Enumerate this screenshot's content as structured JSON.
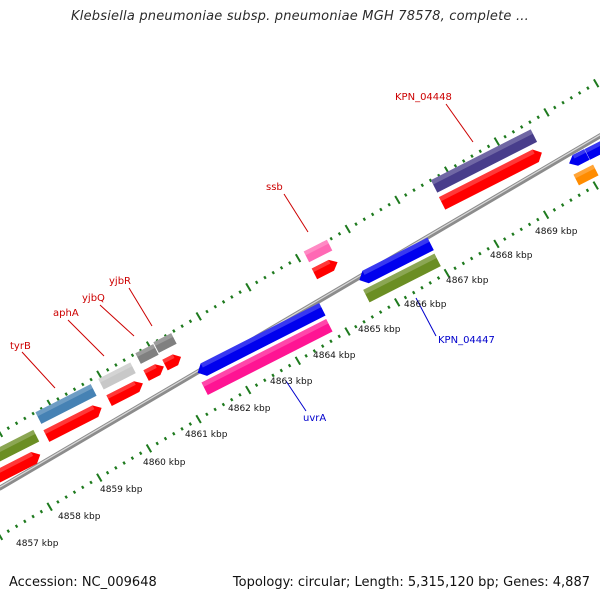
{
  "title": "Klebsiella pneumoniae subsp. pneumoniae MGH 78578, complete ...",
  "footer": {
    "accession": "Accession: NC_009648",
    "stats": "Topology: circular; Length: 5,315,120 bp; Genes: 4,887"
  },
  "scale": {
    "unit": "kbp",
    "labels": [
      "4857 kbp",
      "4858 kbp",
      "4859 kbp",
      "4860 kbp",
      "4861 kbp",
      "4862 kbp",
      "4863 kbp",
      "4864 kbp",
      "4865 kbp",
      "4866 kbp",
      "4867 kbp",
      "4868 kbp",
      "4869 kbp"
    ]
  },
  "gene_labels": [
    {
      "text": "tyrB",
      "strand": "forward",
      "color": "#cc0000"
    },
    {
      "text": "aphA",
      "strand": "forward",
      "color": "#cc0000"
    },
    {
      "text": "yjbQ",
      "strand": "forward",
      "color": "#cc0000"
    },
    {
      "text": "yjbR",
      "strand": "forward",
      "color": "#cc0000"
    },
    {
      "text": "ssb",
      "strand": "forward",
      "color": "#cc0000"
    },
    {
      "text": "KPN_04448",
      "strand": "forward",
      "color": "#cc0000"
    },
    {
      "text": "KPN_04447",
      "strand": "reverse",
      "color": "#0000cc"
    },
    {
      "text": "uvrA",
      "strand": "reverse",
      "color": "#0000cc"
    }
  ],
  "colors": {
    "backbone": "#8c8c8c",
    "ticks": "#1e7a1e",
    "cds_red": "#ff0000",
    "blue": "#0000ee",
    "magenta": "#ff1493",
    "olive": "#6b8e23",
    "steelblue": "#4682b4",
    "navy": "#483d8b",
    "gray": "#808080",
    "lightgray": "#c8c8c8",
    "pink": "#ff69b4",
    "orange": "#ff8c00"
  }
}
